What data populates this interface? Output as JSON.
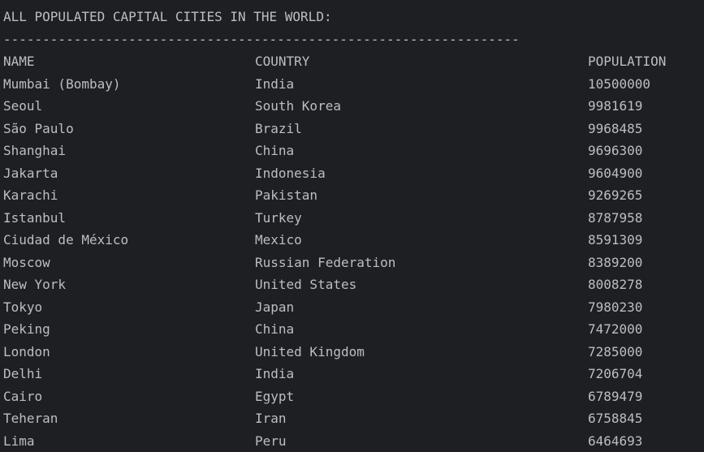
{
  "title": "ALL POPULATED CAPITAL CITIES IN THE WORLD:",
  "separator": "------------------------------------------------------------------",
  "columns": {
    "name": "NAME",
    "country": "COUNTRY",
    "population": "POPULATION"
  },
  "rows": [
    {
      "name": "Mumbai (Bombay)",
      "country": "India",
      "population": "10500000"
    },
    {
      "name": "Seoul",
      "country": "South Korea",
      "population": "9981619"
    },
    {
      "name": "São Paulo",
      "country": "Brazil",
      "population": "9968485"
    },
    {
      "name": "Shanghai",
      "country": "China",
      "population": "9696300"
    },
    {
      "name": "Jakarta",
      "country": "Indonesia",
      "population": "9604900"
    },
    {
      "name": "Karachi",
      "country": "Pakistan",
      "population": "9269265"
    },
    {
      "name": "Istanbul",
      "country": "Turkey",
      "population": "8787958"
    },
    {
      "name": "Ciudad de México",
      "country": "Mexico",
      "population": "8591309"
    },
    {
      "name": "Moscow",
      "country": "Russian Federation",
      "population": "8389200"
    },
    {
      "name": "New York",
      "country": "United States",
      "population": "8008278"
    },
    {
      "name": "Tokyo",
      "country": "Japan",
      "population": "7980230"
    },
    {
      "name": "Peking",
      "country": "China",
      "population": "7472000"
    },
    {
      "name": "London",
      "country": "United Kingdom",
      "population": "7285000"
    },
    {
      "name": "Delhi",
      "country": "India",
      "population": "7206704"
    },
    {
      "name": "Cairo",
      "country": "Egypt",
      "population": "6789479"
    },
    {
      "name": "Teheran",
      "country": "Iran",
      "population": "6758845"
    },
    {
      "name": "Lima",
      "country": "Peru",
      "population": "6464693"
    }
  ],
  "colors": {
    "background": "#1e1f22",
    "text": "#bcbec4"
  }
}
